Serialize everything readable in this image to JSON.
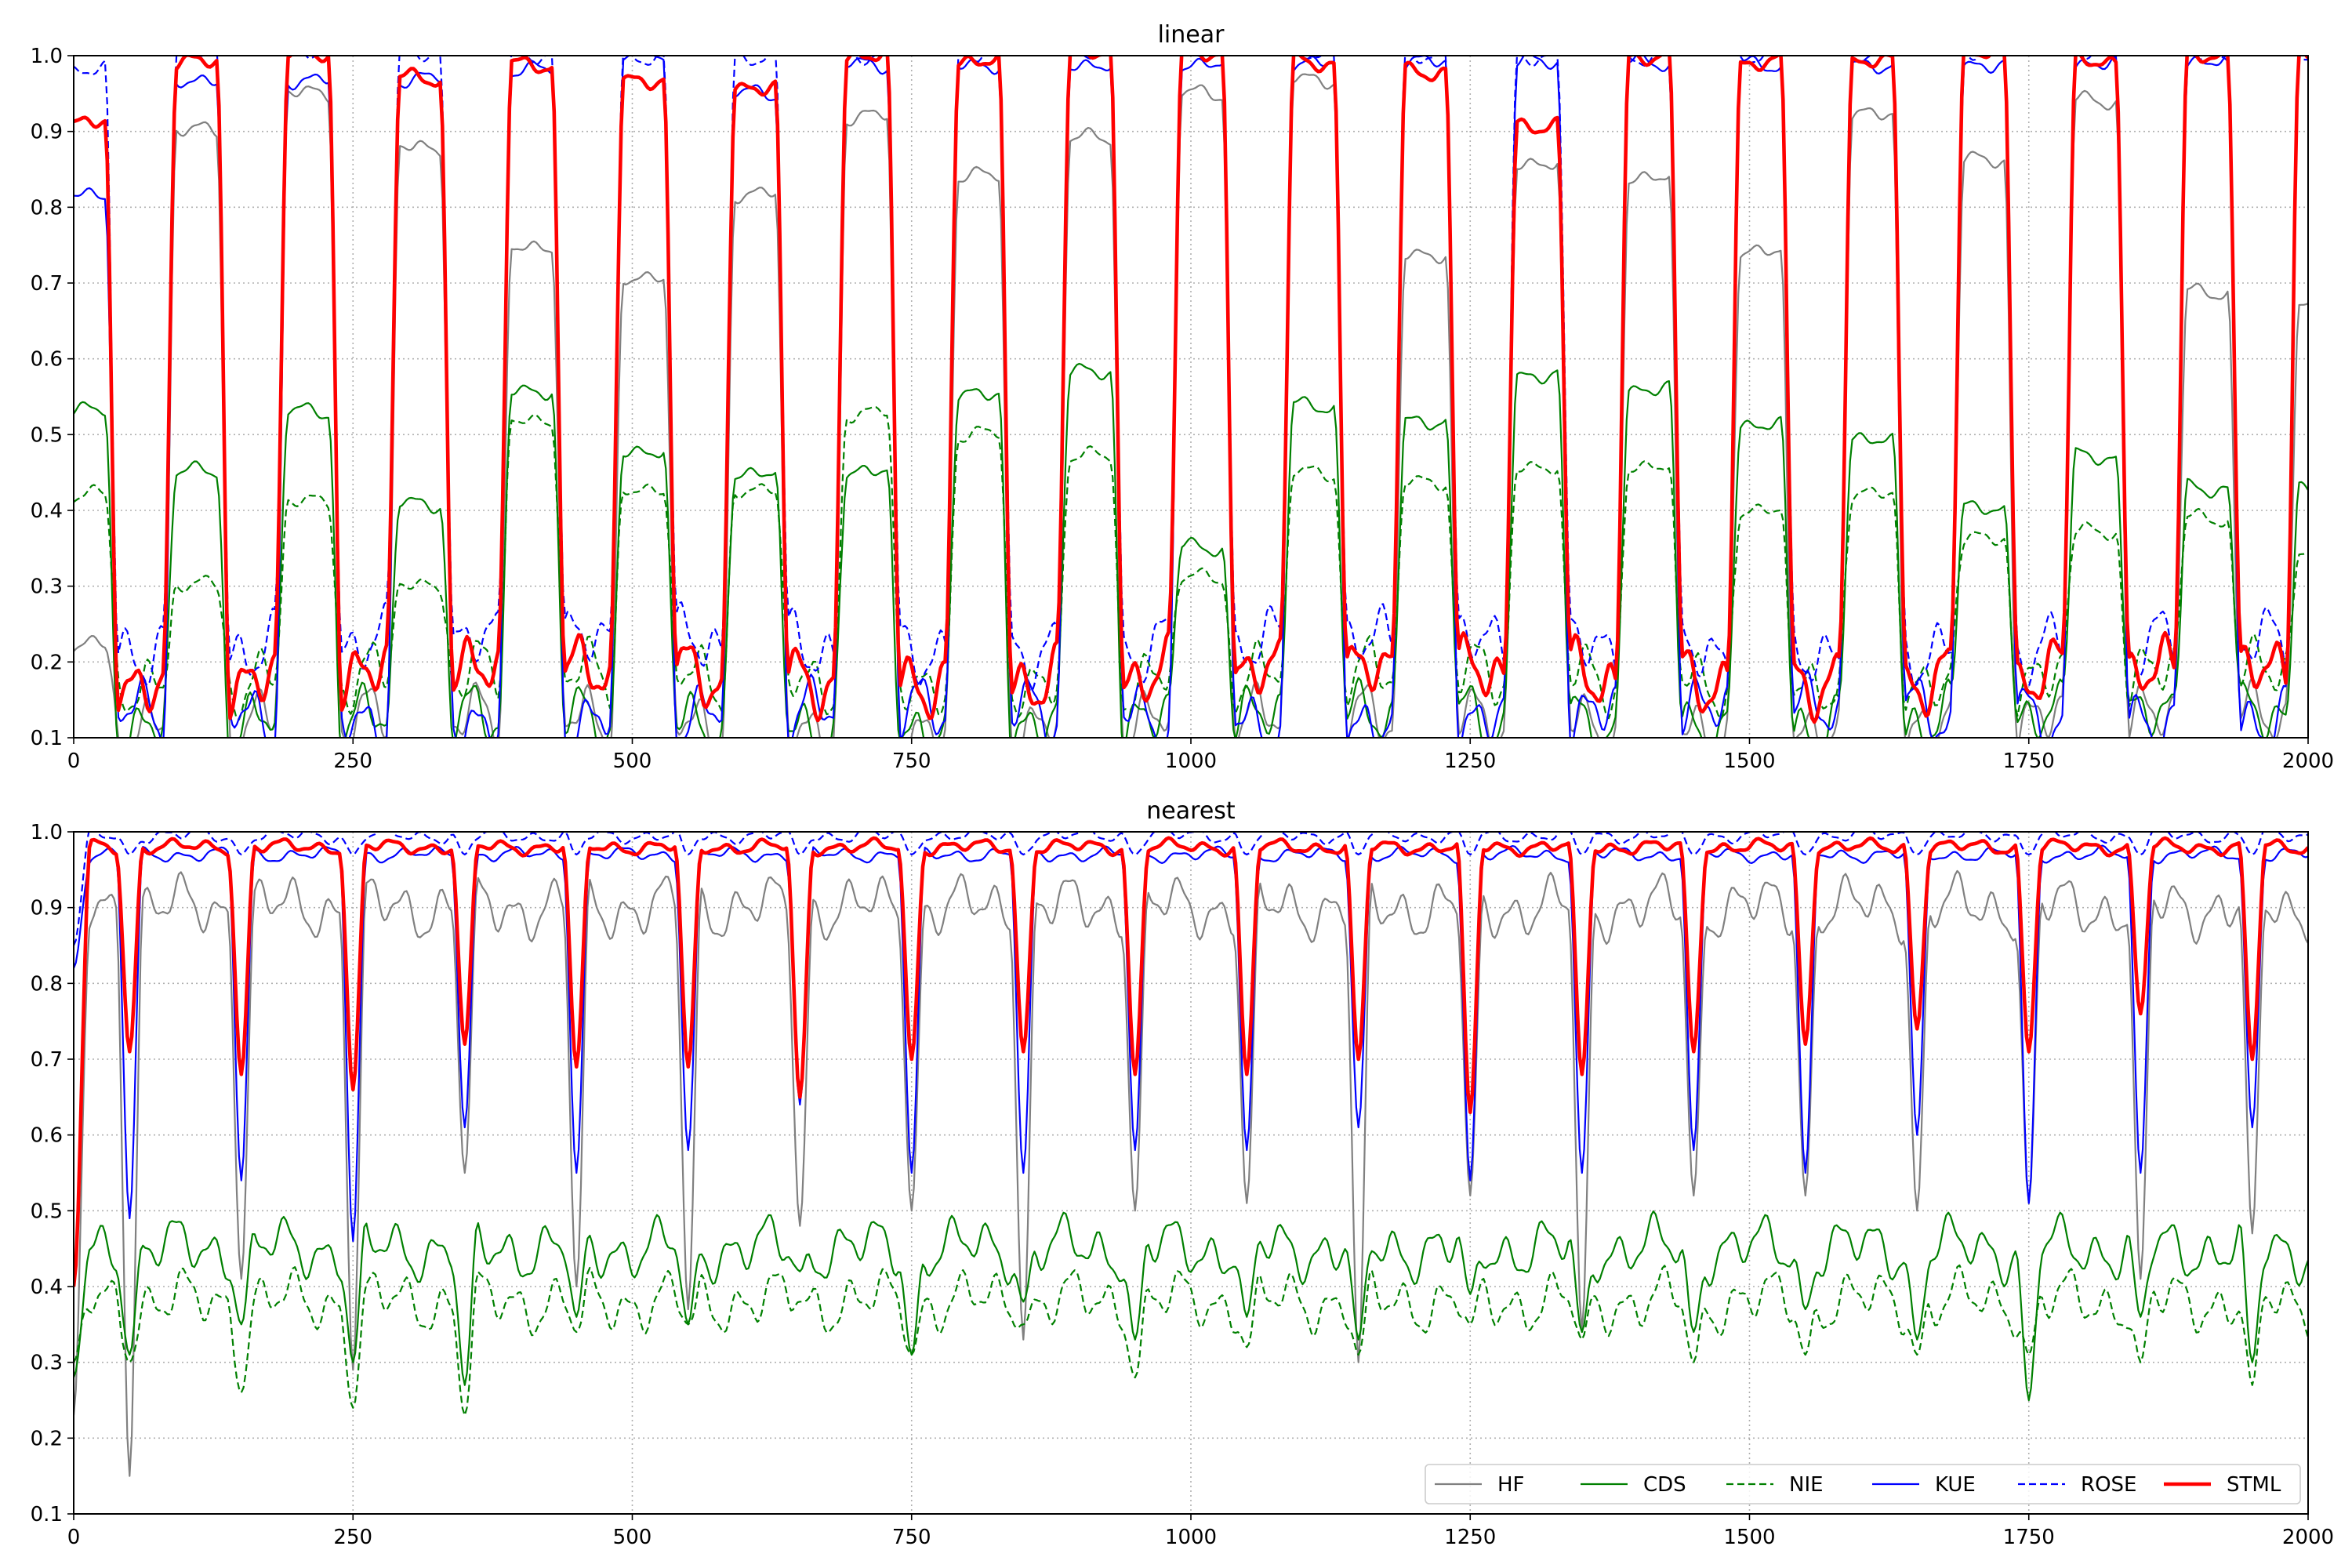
{
  "chart_data": [
    {
      "type": "line",
      "title": "linear",
      "xlabel": "",
      "ylabel": "",
      "xlim": [
        0,
        2000
      ],
      "ylim": [
        0.1,
        1.0
      ],
      "xticks": [
        0,
        250,
        500,
        750,
        1000,
        1250,
        1500,
        1750,
        2000
      ],
      "yticks": [
        0.1,
        0.2,
        0.3,
        0.4,
        0.5,
        0.6,
        0.7,
        0.8,
        0.9,
        1.0
      ],
      "ytick_labels": [
        "0.1",
        "0.2",
        "0.3",
        "0.4",
        "0.5",
        "0.6",
        "0.7",
        "0.8",
        "0.9",
        "1.0"
      ],
      "grid": true,
      "pattern": {
        "period": 100,
        "first_peak_x": 10,
        "note_peaks_x": [
          10,
          110,
          210,
          310,
          410,
          510,
          610,
          710,
          810,
          910,
          1010,
          1110,
          1210,
          1310,
          1410,
          1510,
          1610,
          1710,
          1810,
          1910
        ]
      },
      "series": [
        {
          "name": "HF",
          "color": "#808080",
          "style": "solid",
          "key_points": [
            [
              0,
              0.22
            ],
            [
              110,
              0.9
            ],
            [
              210,
              0.95
            ],
            [
              310,
              0.88
            ],
            [
              410,
              0.75
            ],
            [
              510,
              0.71
            ],
            [
              610,
              0.82
            ],
            [
              710,
              0.92
            ],
            [
              810,
              0.84
            ],
            [
              910,
              0.89
            ],
            [
              1010,
              0.95
            ],
            [
              1110,
              0.97
            ],
            [
              1210,
              0.74
            ],
            [
              1310,
              0.86
            ],
            [
              1410,
              0.84
            ],
            [
              1510,
              0.74
            ],
            [
              1610,
              0.92
            ],
            [
              1710,
              0.86
            ],
            [
              1810,
              0.94
            ],
            [
              1910,
              0.69
            ],
            [
              2000,
              0.67
            ]
          ],
          "trough_level": 0.12
        },
        {
          "name": "CDS",
          "color": "#008000",
          "style": "solid",
          "key_points": [
            [
              10,
              0.53
            ],
            [
              110,
              0.45
            ],
            [
              210,
              0.53
            ],
            [
              310,
              0.41
            ],
            [
              410,
              0.56
            ],
            [
              510,
              0.48
            ],
            [
              610,
              0.45
            ],
            [
              710,
              0.45
            ],
            [
              810,
              0.55
            ],
            [
              910,
              0.58
            ],
            [
              1010,
              0.35
            ],
            [
              1110,
              0.54
            ],
            [
              1210,
              0.52
            ],
            [
              1310,
              0.58
            ],
            [
              1410,
              0.56
            ],
            [
              1510,
              0.51
            ],
            [
              1610,
              0.49
            ],
            [
              1710,
              0.4
            ],
            [
              1810,
              0.47
            ],
            [
              1910,
              0.43
            ],
            [
              2000,
              0.43
            ]
          ],
          "trough_level": 0.12
        },
        {
          "name": "NIE",
          "color": "#008000",
          "style": "dashed",
          "key_points": [
            [
              10,
              0.42
            ],
            [
              110,
              0.3
            ],
            [
              210,
              0.41
            ],
            [
              310,
              0.3
            ],
            [
              410,
              0.52
            ],
            [
              510,
              0.43
            ],
            [
              610,
              0.43
            ],
            [
              710,
              0.53
            ],
            [
              810,
              0.5
            ],
            [
              910,
              0.47
            ],
            [
              1010,
              0.31
            ],
            [
              1110,
              0.45
            ],
            [
              1210,
              0.44
            ],
            [
              1310,
              0.46
            ],
            [
              1410,
              0.46
            ],
            [
              1510,
              0.4
            ],
            [
              1610,
              0.42
            ],
            [
              1710,
              0.36
            ],
            [
              1810,
              0.37
            ],
            [
              1910,
              0.39
            ],
            [
              2000,
              0.34
            ]
          ],
          "trough_level": 0.18
        },
        {
          "name": "KUE",
          "color": "#0000ff",
          "style": "solid",
          "key_points": [
            [
              10,
              0.82
            ],
            [
              110,
              0.97
            ],
            [
              210,
              0.97
            ],
            [
              310,
              0.97
            ],
            [
              410,
              0.98
            ],
            [
              510,
              1.0
            ],
            [
              610,
              0.95
            ],
            [
              710,
              0.99
            ],
            [
              810,
              0.99
            ],
            [
              910,
              0.99
            ],
            [
              1010,
              0.99
            ],
            [
              1110,
              0.99
            ],
            [
              1210,
              0.99
            ],
            [
              1310,
              0.99
            ],
            [
              1410,
              0.99
            ],
            [
              1510,
              0.99
            ],
            [
              1610,
              0.99
            ],
            [
              1710,
              0.99
            ],
            [
              1810,
              0.99
            ],
            [
              1910,
              0.99
            ],
            [
              2000,
              1.0
            ]
          ],
          "trough_level": 0.13
        },
        {
          "name": "ROSE",
          "color": "#0000ff",
          "style": "dashed",
          "key_points": [
            [
              10,
              0.98
            ],
            [
              110,
              1.0
            ],
            [
              210,
              1.0
            ],
            [
              310,
              1.0
            ],
            [
              410,
              1.0
            ],
            [
              510,
              1.0
            ],
            [
              610,
              1.0
            ],
            [
              710,
              1.0
            ],
            [
              810,
              1.0
            ],
            [
              910,
              1.0
            ],
            [
              1010,
              1.0
            ],
            [
              1110,
              1.0
            ],
            [
              1210,
              1.0
            ],
            [
              1310,
              1.0
            ],
            [
              1410,
              1.0
            ],
            [
              1510,
              1.0
            ],
            [
              1610,
              1.0
            ],
            [
              1710,
              1.0
            ],
            [
              1810,
              1.0
            ],
            [
              1910,
              1.0
            ],
            [
              2000,
              1.0
            ]
          ],
          "trough_level": 0.22
        },
        {
          "name": "STML",
          "color": "#ff0000",
          "style": "solid-thick",
          "key_points": [
            [
              10,
              0.91
            ],
            [
              110,
              0.99
            ],
            [
              210,
              1.0
            ],
            [
              310,
              0.97
            ],
            [
              410,
              0.99
            ],
            [
              510,
              0.97
            ],
            [
              610,
              0.96
            ],
            [
              710,
              1.0
            ],
            [
              810,
              0.99
            ],
            [
              910,
              1.0
            ],
            [
              1010,
              1.0
            ],
            [
              1110,
              0.99
            ],
            [
              1210,
              0.98
            ],
            [
              1310,
              0.91
            ],
            [
              1410,
              1.0
            ],
            [
              1510,
              0.99
            ],
            [
              1610,
              0.99
            ],
            [
              1710,
              1.0
            ],
            [
              1810,
              0.99
            ],
            [
              1910,
              1.0
            ],
            [
              2000,
              1.0
            ]
          ],
          "trough_level": 0.18
        }
      ]
    },
    {
      "type": "line",
      "title": "nearest",
      "xlabel": "",
      "ylabel": "",
      "xlim": [
        0,
        2000
      ],
      "ylim": [
        0.1,
        1.0
      ],
      "xticks": [
        0,
        250,
        500,
        750,
        1000,
        1250,
        1500,
        1750,
        2000
      ],
      "yticks": [
        0.1,
        0.2,
        0.3,
        0.4,
        0.5,
        0.6,
        0.7,
        0.8,
        0.9,
        1.0
      ],
      "ytick_labels": [
        "0.1",
        "0.2",
        "0.3",
        "0.4",
        "0.5",
        "0.6",
        "0.7",
        "0.8",
        "0.9",
        "1.0"
      ],
      "grid": true,
      "legend": {
        "placement": "lower-right",
        "columns": 6
      },
      "pattern": {
        "period": 100,
        "first_dip_x": 50,
        "note_dips_x": [
          50,
          150,
          250,
          350,
          450,
          550,
          650,
          750,
          850,
          950,
          1050,
          1150,
          1250,
          1350,
          1450,
          1550,
          1650,
          1750,
          1850,
          1950
        ]
      },
      "series": [
        {
          "name": "HF",
          "color": "#808080",
          "style": "solid",
          "plateau": 0.9,
          "dip_values": [
            0.15,
            0.41,
            0.29,
            0.55,
            0.4,
            0.37,
            0.48,
            0.5,
            0.33,
            0.5,
            0.51,
            0.3,
            0.52,
            0.34,
            0.52,
            0.52,
            0.5,
            0.51,
            0.41,
            0.47
          ],
          "start": 0.23,
          "end": 0.95
        },
        {
          "name": "CDS",
          "color": "#008000",
          "style": "solid",
          "plateau": 0.45,
          "dip_values": [
            0.31,
            0.35,
            0.3,
            0.27,
            0.36,
            0.35,
            0.42,
            0.31,
            0.38,
            0.33,
            0.36,
            0.33,
            0.39,
            0.34,
            0.34,
            0.37,
            0.33,
            0.25,
            0.36,
            0.3
          ],
          "start": 0.28,
          "end": 0.45
        },
        {
          "name": "NIE",
          "color": "#008000",
          "style": "dashed",
          "plateau": 0.38,
          "dip_values": [
            0.3,
            0.26,
            0.24,
            0.23,
            0.34,
            0.35,
            0.38,
            0.31,
            0.35,
            0.28,
            0.32,
            0.31,
            0.35,
            0.33,
            0.3,
            0.31,
            0.31,
            0.31,
            0.3,
            0.27
          ],
          "start": 0.3,
          "end": 0.33
        },
        {
          "name": "KUE",
          "color": "#0000ff",
          "style": "solid",
          "plateau": 0.97,
          "dip_values": [
            0.49,
            0.54,
            0.46,
            0.61,
            0.55,
            0.58,
            0.64,
            0.55,
            0.55,
            0.58,
            0.58,
            0.61,
            0.54,
            0.55,
            0.58,
            0.55,
            0.6,
            0.51,
            0.55,
            0.61
          ],
          "start": 0.82,
          "end": 0.95
        },
        {
          "name": "ROSE",
          "color": "#0000ff",
          "style": "dashed",
          "plateau": 0.995,
          "dip_values": [
            0.97,
            0.97,
            0.97,
            0.97,
            0.97,
            0.97,
            0.97,
            0.97,
            0.97,
            0.97,
            0.97,
            0.97,
            0.97,
            0.97,
            0.97,
            0.97,
            0.97,
            0.97,
            0.97,
            0.97
          ],
          "start": 0.85,
          "end": 1.0
        },
        {
          "name": "STML",
          "color": "#ff0000",
          "style": "solid-thick",
          "plateau": 0.98,
          "dip_values": [
            0.71,
            0.68,
            0.66,
            0.72,
            0.69,
            0.69,
            0.65,
            0.7,
            0.71,
            0.68,
            0.68,
            0.7,
            0.63,
            0.68,
            0.71,
            0.72,
            0.74,
            0.71,
            0.76,
            0.7
          ],
          "start": 0.4,
          "end": 1.0
        }
      ]
    }
  ]
}
